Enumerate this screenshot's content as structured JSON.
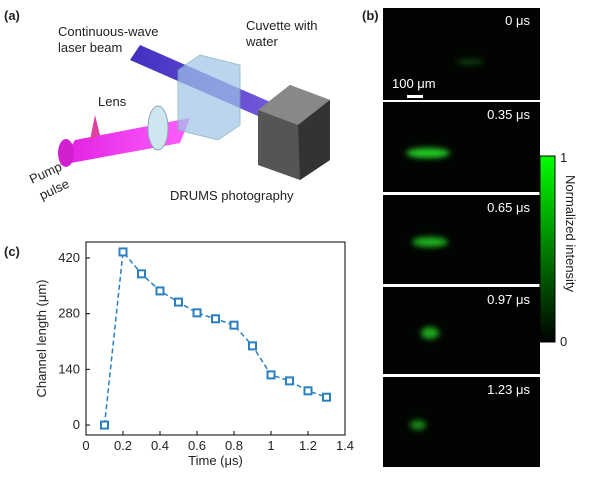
{
  "panel_labels": [
    "(a)",
    "(b)",
    "(c)"
  ],
  "setup": {
    "laser": [
      "Continuous-wave",
      "laser beam"
    ],
    "cuvette": [
      "Cuvette with",
      "water"
    ],
    "lens": "Lens",
    "pump": [
      "Pump",
      "pulse"
    ],
    "camera": "DRUMS photography"
  },
  "frames": {
    "times": [
      "0 μs",
      "0.35 μs",
      "0.65 μs",
      "0.97 μs",
      "1.23 μs"
    ],
    "scale_bar": "100 μm",
    "colorbar": {
      "label": "Normalized intensity",
      "min": "0",
      "max": "1"
    }
  },
  "chart_data": {
    "type": "line",
    "x_label": "Time (μs)",
    "y_label": "Channel length (μm)",
    "x": [
      0.1,
      0.2,
      0.3,
      0.4,
      0.5,
      0.6,
      0.7,
      0.8,
      0.9,
      1.0,
      1.1,
      1.2,
      1.3
    ],
    "values": [
      0,
      435,
      380,
      337,
      309,
      282,
      267,
      251,
      199,
      126,
      111,
      86,
      70
    ],
    "color": "#2a7fc0",
    "xlim": [
      0,
      1.4
    ],
    "ylim": [
      -25,
      460
    ],
    "xticks": [
      0,
      0.2,
      0.4,
      0.6,
      0.8,
      1,
      1.2,
      1.4
    ],
    "yticks": [
      0,
      140,
      280,
      420
    ]
  }
}
